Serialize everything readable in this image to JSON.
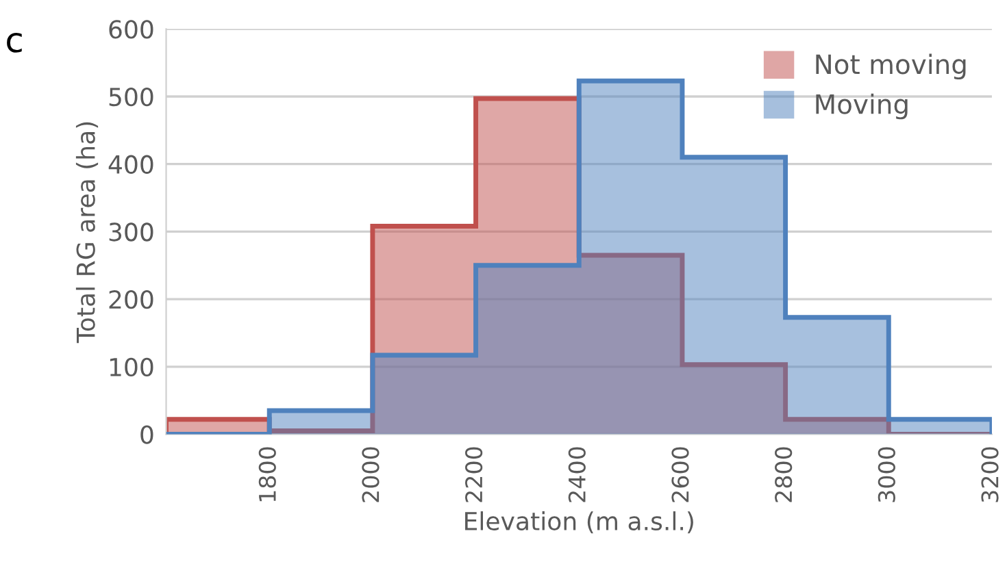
{
  "chart_data": {
    "type": "histogram",
    "xlabel": "Elevation (m a.s.l.)",
    "ylabel": "Total RG area (ha)",
    "bins": [
      1600,
      1800,
      2000,
      2200,
      2400,
      2600,
      2800,
      3000,
      3200
    ],
    "series": [
      {
        "name": "Not moving",
        "color": "#c0504d",
        "values": [
          22,
          5,
          308,
          497,
          265,
          103,
          22,
          0
        ]
      },
      {
        "name": "Moving",
        "color": "#4f81bd",
        "values": [
          0,
          35,
          117,
          250,
          523,
          410,
          173,
          22
        ]
      }
    ],
    "xlim": [
      1600,
      3200
    ],
    "xticks": [
      1800,
      2000,
      2200,
      2400,
      2600,
      2800,
      3000,
      3200
    ],
    "ylim": [
      0,
      600
    ],
    "yticks": [
      0,
      100,
      200,
      300,
      400,
      500,
      600
    ],
    "grid": "y",
    "legend": "top right",
    "annotations": [
      "c"
    ]
  }
}
